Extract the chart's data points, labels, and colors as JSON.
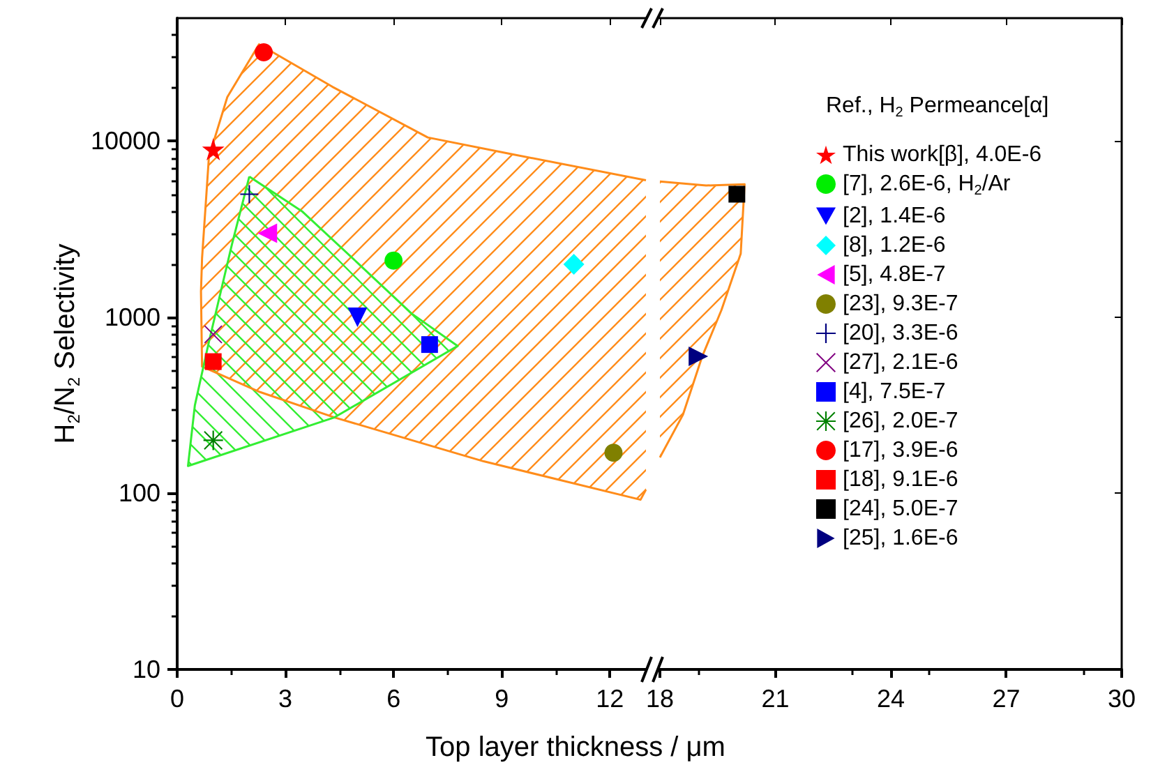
{
  "chart_data": [
    {
      "type": "scatter",
      "legend": "right",
      "xlabel": "Top layer thickness / μm",
      "ylabel": "H$_{2}$/N$_{2}$ Selectivity",
      "xlim": [
        0,
        13
      ],
      "xticks": [
        0,
        3,
        6,
        9,
        12
      ],
      "ylim": [
        10,
        50000
      ],
      "yticks": [
        10,
        100,
        1000,
        10000
      ],
      "log": "y",
      "series": [
        {
          "name": "This work[β], 4.0E-6",
          "color": "#ff0000",
          "marker": "star",
          "x": [
            1
          ],
          "values": [
            9000
          ]
        },
        {
          "name": "[7], 2.6E-6, H$_{2}$/Ar",
          "color": "#00ee00",
          "marker": "circle",
          "x": [
            6
          ],
          "values": [
            2100
          ]
        },
        {
          "name": "[2], 1.4E-6",
          "color": "#0000ff",
          "marker": "triangle-down",
          "x": [
            5
          ],
          "values": [
            1000
          ]
        },
        {
          "name": "[8], 1.2E-6",
          "color": "#00ffff",
          "marker": "diamond",
          "x": [
            11
          ],
          "values": [
            2000
          ]
        },
        {
          "name": "[5], 4.8E-7",
          "color": "#ff00ff",
          "marker": "triangle-left",
          "x": [
            2.5
          ],
          "values": [
            3000
          ]
        },
        {
          "name": "[23], 9.3E-7",
          "color": "#808000",
          "marker": "circle",
          "x": [
            12.1
          ],
          "values": [
            170
          ]
        },
        {
          "name": "[20], 3.3E-6",
          "color": "#000080",
          "marker": "plus",
          "x": [
            2
          ],
          "values": [
            5000
          ]
        },
        {
          "name": "[27], 2.1E-6",
          "color": "#800080",
          "marker": "cross",
          "x": [
            1
          ],
          "values": [
            800
          ]
        },
        {
          "name": "[4], 7.5E-7",
          "color": "#0000ff",
          "marker": "square",
          "x": [
            7
          ],
          "values": [
            700
          ]
        },
        {
          "name": "[26], 2.0E-7",
          "color": "#008000",
          "marker": "asterisk",
          "x": [
            1
          ],
          "values": [
            200
          ]
        },
        {
          "name": "[17], 3.9E-6",
          "color": "#ff0000",
          "marker": "circle",
          "x": [
            2.4
          ],
          "values": [
            32000
          ]
        },
        {
          "name": "[18], 9.1E-6",
          "color": "#ff0000",
          "marker": "square",
          "x": [
            1
          ],
          "values": [
            560
          ]
        },
        {
          "type": "area",
          "color": "#ff8c1a",
          "marker": "none",
          "x": [
            13,
            12.85,
            8.5,
            4.36,
            2.3,
            0.69,
            0.66,
            0.69,
            0.88,
            1.39,
            2.27,
            4.3,
            6.95,
            9.27,
            13
          ],
          "values": [
            105,
            92,
            152,
            270,
            376,
            525,
            1400,
            2170,
            8130,
            17800,
            35500,
            20400,
            10500,
            8450,
            6000
          ]
        },
        {
          "type": "area",
          "color": "#33ee33",
          "marker": "none",
          "x": [
            2,
            3.46,
            5,
            6.5,
            7.78,
            4.36,
            0.3,
            0.49,
            0.88,
            1.52,
            2
          ],
          "values": [
            6300,
            4000,
            2040,
            1050,
            687,
            270,
            143,
            316,
            725,
            2600,
            6300
          ]
        }
      ]
    },
    {
      "type": "scatter",
      "xlim": [
        18,
        30
      ],
      "xticks": [
        18,
        21,
        24,
        27,
        30
      ],
      "ylim": [
        10,
        50000
      ],
      "yticks": [
        10,
        100,
        1000,
        10000
      ],
      "log": "y",
      "tick_labels": "x",
      "legend": "right",
      "legend_title": "Ref., H$_{2}$ Permeance[α]",
      "series": [
        {
          "name": "[24], 5.0E-7",
          "color": "#000000",
          "marker": "square",
          "x": [
            20
          ],
          "values": [
            5000
          ]
        },
        {
          "name": "[25], 1.6E-6",
          "color": "#000080",
          "marker": "triangle-right",
          "x": [
            19
          ],
          "values": [
            600
          ]
        },
        {
          "type": "area",
          "color": "#ff8c1a",
          "marker": "none",
          "x": [
            18,
            19.2,
            20.2,
            20.1,
            19.6,
            19.1,
            18.6,
            18
          ],
          "values": [
            5900,
            5600,
            5700,
            2300,
            1100,
            600,
            280,
            160
          ]
        }
      ]
    }
  ]
}
